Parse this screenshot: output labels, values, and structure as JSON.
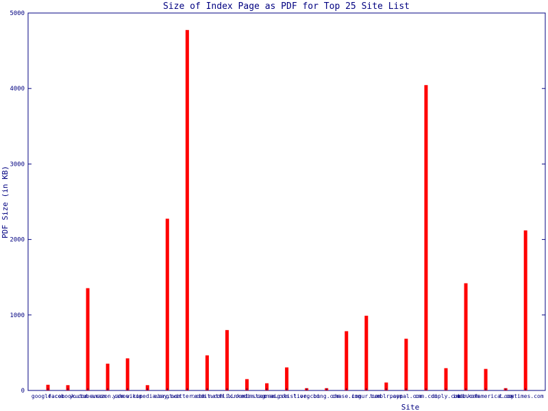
{
  "chart_data": {
    "type": "bar",
    "title": "Size of Index Page as PDF for Top 25 Site List",
    "xlabel": "Site",
    "ylabel": "PDF Size (in KB)",
    "ylim": [
      0,
      5000
    ],
    "yticks": [
      0,
      1000,
      2000,
      3000,
      4000,
      5000
    ],
    "grid": false,
    "legend": "none",
    "bar_color": "#ff0000",
    "axis_color": "#000080",
    "categories": [
      "google.com",
      "facebook.com",
      "youtube.com",
      "amazon.com",
      "yahoo.com",
      "wikipedia.org",
      "ebay.com",
      "twitter.com",
      "reddit.com",
      "netflix.com",
      "linkedin.com",
      "instagram.com",
      "craigslist.org",
      "live.com",
      "bing.com",
      "chase.com",
      "imgur.com",
      "tumblr.com",
      "paypal.com",
      "cnn.com",
      "diply.com",
      "imdb.com",
      "bankofamerica.com",
      "t.co",
      "nytimes.com"
    ],
    "values": [
      75,
      70,
      1355,
      355,
      425,
      70,
      2275,
      4775,
      465,
      800,
      150,
      95,
      305,
      30,
      30,
      785,
      990,
      105,
      685,
      4045,
      295,
      1420,
      285,
      30,
      2120
    ]
  }
}
